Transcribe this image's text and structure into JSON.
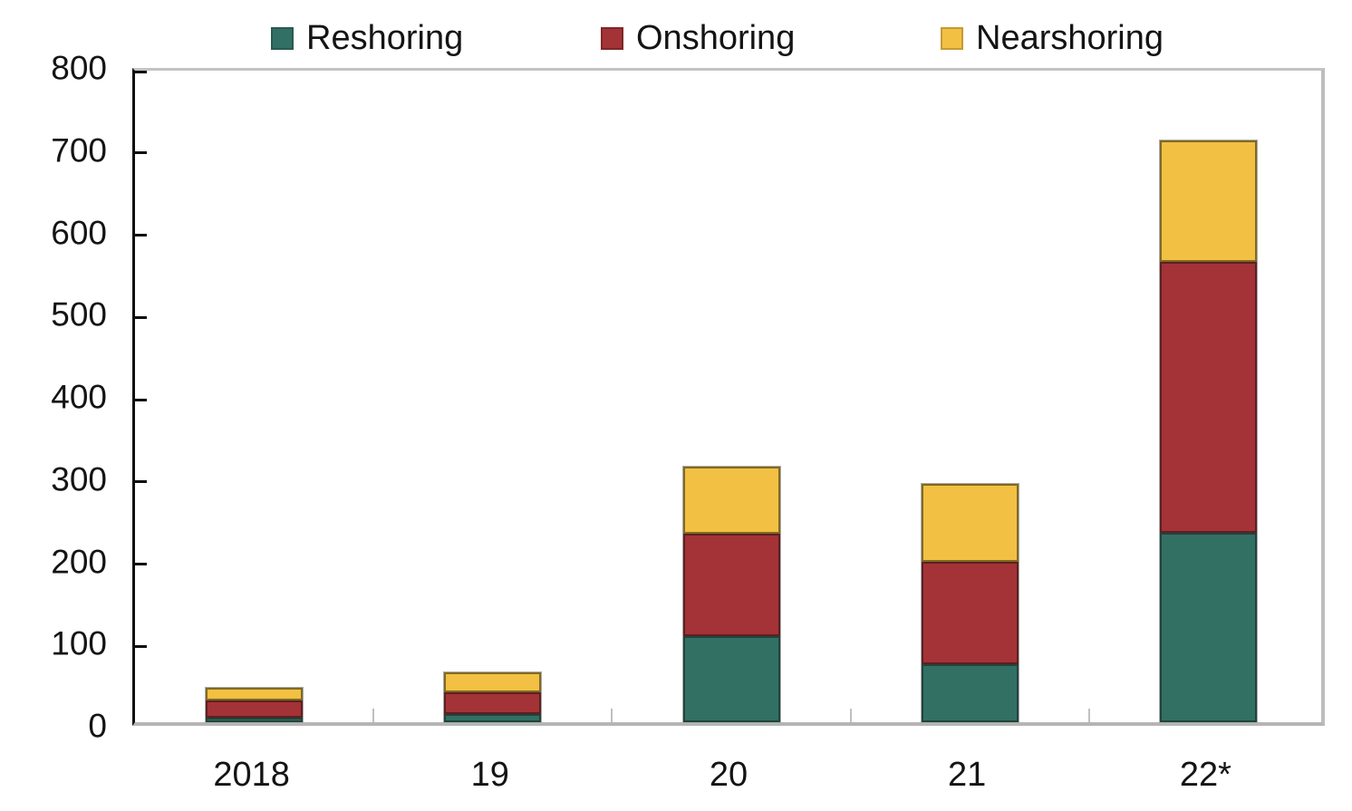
{
  "chart_data": {
    "type": "bar",
    "subtype": "stacked-vertical",
    "title": "",
    "xlabel": "",
    "ylabel": "",
    "categories": [
      "2018",
      "19",
      "20",
      "21",
      "22*"
    ],
    "series": [
      {
        "name": "Reshoring",
        "color": "#337064",
        "border_color": "#20443c",
        "values": [
          5,
          10,
          105,
          71,
          230
        ]
      },
      {
        "name": "Onshoring",
        "color": "#a33336",
        "border_color": "#5e1f21",
        "values": [
          22,
          26,
          124,
          124,
          330
        ]
      },
      {
        "name": "Nearshoring",
        "color": "#f2c043",
        "border_color": "#7f6a22",
        "values": [
          15,
          25,
          82,
          95,
          148
        ]
      }
    ],
    "totals": [
      42,
      61,
      311,
      290,
      708
    ],
    "ylim": [
      0,
      800
    ],
    "yticks": [
      0,
      100,
      200,
      300,
      400,
      500,
      600,
      700,
      800
    ],
    "grid": false,
    "legend_position": "top"
  },
  "legend": {
    "items": [
      {
        "label": "Reshoring",
        "swatch_color": "#337064",
        "swatch_border": "#2a5a50"
      },
      {
        "label": "Onshoring",
        "swatch_color": "#a33336",
        "swatch_border": "#7e2729"
      },
      {
        "label": "Nearshoring",
        "swatch_color": "#f2c043",
        "swatch_border": "#c59a35"
      }
    ]
  },
  "axis_colors": {
    "left_axis": "#0d0d0d",
    "plot_border": "#c0c0c0",
    "tick_gray": "#c0c0c0",
    "text": "#141414"
  }
}
